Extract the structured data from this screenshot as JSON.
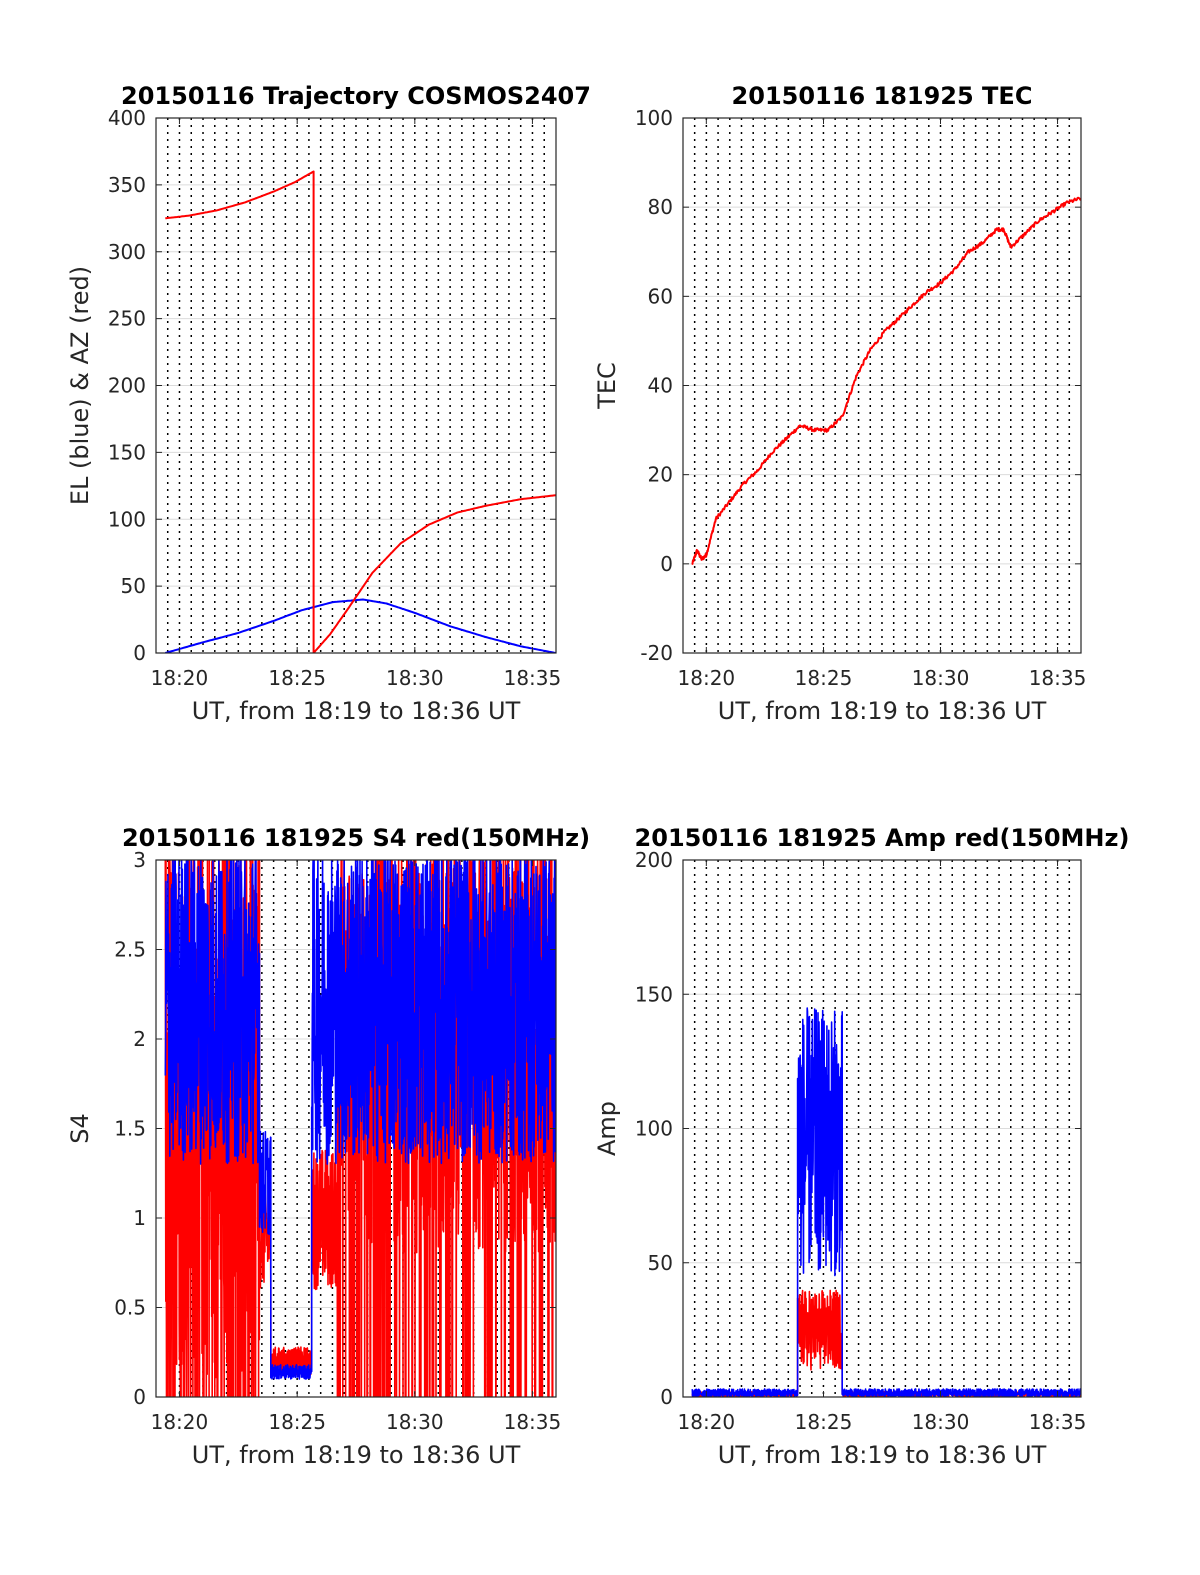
{
  "figure": {
    "colors": {
      "elevation": "#0000ff",
      "azimuth": "#ff0000",
      "red_channel": "#ff0000",
      "blue_channel": "#0000ff",
      "grid": "#dcdcdc",
      "marker_lines": "#000000"
    },
    "marker_lines_style": "dotted vertical lines every 30 s"
  },
  "chart_data": [
    {
      "id": "traj",
      "type": "line",
      "title": "20150116 Trajectory COSMOS2407",
      "xlabel": "UT, from 18:19 to 18:36 UT",
      "ylabel": "EL (blue) & AZ (red)",
      "xlim": [
        18.3167,
        18.6
      ],
      "ylim": [
        0,
        400
      ],
      "x_ticks": [
        18.3333,
        18.4167,
        18.5,
        18.5833
      ],
      "x_tick_labels": [
        "18:20",
        "18:25",
        "18:30",
        "18:35"
      ],
      "y_ticks": [
        0,
        50,
        100,
        150,
        200,
        250,
        300,
        350,
        400
      ],
      "y_tick_labels": [
        "0",
        "50",
        "100",
        "150",
        "200",
        "250",
        "300",
        "350",
        "400"
      ],
      "grid": true,
      "series": [
        {
          "color": "#0000ff",
          "points": [
            [
              18.3233,
              0
            ],
            [
              18.35,
              8
            ],
            [
              18.375,
              15
            ],
            [
              18.4,
              24
            ],
            [
              18.42,
              32
            ],
            [
              18.4417,
              38
            ],
            [
              18.4633,
              40
            ],
            [
              18.48,
              37
            ],
            [
              18.5,
              30
            ],
            [
              18.525,
              20
            ],
            [
              18.55,
              12
            ],
            [
              18.575,
              5
            ],
            [
              18.6,
              0
            ]
          ]
        },
        {
          "color": "#ff0000",
          "points": [
            [
              18.3233,
              325
            ],
            [
              18.34,
              327
            ],
            [
              18.36,
              331
            ],
            [
              18.38,
              337
            ],
            [
              18.4,
              345
            ],
            [
              18.415,
              352
            ],
            [
              18.4283,
              360
            ],
            [
              18.4283,
              0
            ],
            [
              18.44,
              14
            ],
            [
              18.4533,
              34
            ],
            [
              18.47,
              60
            ],
            [
              18.49,
              82
            ],
            [
              18.51,
              96
            ],
            [
              18.53,
              105
            ],
            [
              18.55,
              110
            ],
            [
              18.575,
              115
            ],
            [
              18.6,
              118
            ]
          ]
        }
      ]
    },
    {
      "id": "tec",
      "type": "line",
      "title": "20150116 181925 TEC",
      "xlabel": "UT, from 18:19 to 18:36 UT",
      "ylabel": "TEC",
      "xlim": [
        18.3167,
        18.6
      ],
      "ylim": [
        -20,
        100
      ],
      "x_ticks": [
        18.3333,
        18.4167,
        18.5,
        18.5833
      ],
      "x_tick_labels": [
        "18:20",
        "18:25",
        "18:30",
        "18:35"
      ],
      "y_ticks": [
        -20,
        0,
        20,
        40,
        60,
        80,
        100
      ],
      "y_tick_labels": [
        "-20",
        "0",
        "20",
        "40",
        "60",
        "80",
        "100"
      ],
      "grid": true,
      "series": [
        {
          "color": "#ff0000",
          "points": [
            [
              18.3233,
              0
            ],
            [
              18.3267,
              3
            ],
            [
              18.33,
              1
            ],
            [
              18.3333,
              2
            ],
            [
              18.34,
              10
            ],
            [
              18.35,
              14
            ],
            [
              18.36,
              18
            ],
            [
              18.37,
              21
            ],
            [
              18.38,
              25
            ],
            [
              18.39,
              28
            ],
            [
              18.4,
              31
            ],
            [
              18.41,
              30
            ],
            [
              18.42,
              30
            ],
            [
              18.43,
              33
            ],
            [
              18.44,
              42
            ],
            [
              18.45,
              48
            ],
            [
              18.46,
              52
            ],
            [
              18.47,
              55
            ],
            [
              18.48,
              58
            ],
            [
              18.49,
              61
            ],
            [
              18.5,
              63
            ],
            [
              18.51,
              66
            ],
            [
              18.52,
              70
            ],
            [
              18.53,
              72
            ],
            [
              18.54,
              75
            ],
            [
              18.545,
              75
            ],
            [
              18.55,
              71
            ],
            [
              18.56,
              74
            ],
            [
              18.57,
              77
            ],
            [
              18.58,
              79
            ],
            [
              18.59,
              81
            ],
            [
              18.6,
              82
            ]
          ]
        }
      ]
    },
    {
      "id": "s4",
      "type": "line",
      "title": "20150116 181925 S4 red(150MHz)",
      "xlabel": "UT, from 18:19 to 18:36 UT",
      "ylabel": "S4",
      "xlim": [
        18.3167,
        18.6
      ],
      "ylim": [
        0,
        3
      ],
      "x_ticks": [
        18.3333,
        18.4167,
        18.5,
        18.5833
      ],
      "x_tick_labels": [
        "18:20",
        "18:25",
        "18:30",
        "18:35"
      ],
      "y_ticks": [
        0,
        0.5,
        1,
        1.5,
        2,
        2.5,
        3
      ],
      "y_tick_labels": [
        "0",
        "0.5",
        "1",
        "1.5",
        "2",
        "2.5",
        "3"
      ],
      "grid": true,
      "series": [
        {
          "color": "#ff0000",
          "segments": [
            {
              "x": [
                18.3233,
                18.39
              ],
              "mean": 1.7,
              "amp": 1.6,
              "spikes_to_zero": true
            },
            {
              "x": [
                18.39,
                18.398
              ],
              "mean": 0.9,
              "amp": 0.3
            },
            {
              "x": [
                18.398,
                18.427
              ],
              "mean": 0.2,
              "amp": 0.08
            },
            {
              "x": [
                18.427,
                18.445
              ],
              "mean": 1.0,
              "amp": 0.4
            },
            {
              "x": [
                18.445,
                18.6
              ],
              "mean": 2.0,
              "amp": 1.2,
              "spikes_to_zero": true
            }
          ]
        },
        {
          "color": "#0000ff",
          "segments": [
            {
              "x": [
                18.3233,
                18.39
              ],
              "mean": 2.2,
              "amp": 0.9
            },
            {
              "x": [
                18.39,
                18.398
              ],
              "mean": 1.2,
              "amp": 0.3
            },
            {
              "x": [
                18.398,
                18.427
              ],
              "mean": 0.14,
              "amp": 0.04
            },
            {
              "x": [
                18.427,
                18.6
              ],
              "mean": 2.2,
              "amp": 0.9
            }
          ]
        }
      ]
    },
    {
      "id": "amp",
      "type": "line",
      "title": "20150116 181925 Amp red(150MHz)",
      "xlabel": "UT, from 18:19 to 18:36 UT",
      "ylabel": "Amp",
      "xlim": [
        18.3167,
        18.6
      ],
      "ylim": [
        0,
        200
      ],
      "x_ticks": [
        18.3333,
        18.4167,
        18.5,
        18.5833
      ],
      "x_tick_labels": [
        "18:20",
        "18:25",
        "18:30",
        "18:35"
      ],
      "y_ticks": [
        0,
        50,
        100,
        150,
        200
      ],
      "y_tick_labels": [
        "0",
        "50",
        "100",
        "150",
        "200"
      ],
      "grid": true,
      "series": [
        {
          "color": "#ff0000",
          "segments": [
            {
              "x": [
                18.3233,
                18.3983
              ],
              "mean": 1,
              "amp": 1
            },
            {
              "x": [
                18.3983,
                18.43
              ],
              "mean": 25,
              "amp": 15
            },
            {
              "x": [
                18.43,
                18.6
              ],
              "mean": 1,
              "amp": 1
            }
          ]
        },
        {
          "color": "#0000ff",
          "segments": [
            {
              "x": [
                18.3233,
                18.3983
              ],
              "mean": 1.5,
              "amp": 1.5
            },
            {
              "x": [
                18.3983,
                18.43
              ],
              "mean": 95,
              "amp": 50
            },
            {
              "x": [
                18.43,
                18.6
              ],
              "mean": 1.5,
              "amp": 1.5
            }
          ]
        }
      ]
    }
  ]
}
